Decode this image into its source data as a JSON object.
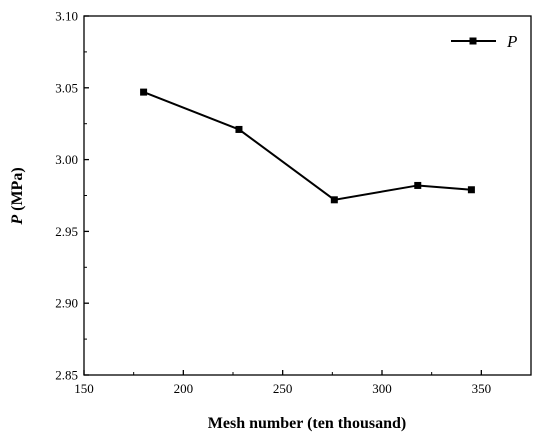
{
  "chart_data": {
    "type": "line",
    "xlabel": "Mesh number (ten thousand)",
    "ylabel_symbol": "P",
    "ylabel_unit": " (MPa)",
    "xlim": [
      150,
      375
    ],
    "ylim": [
      2.85,
      3.1
    ],
    "xticks": [
      150,
      200,
      250,
      300,
      350
    ],
    "yticks": [
      2.85,
      2.9,
      2.95,
      3.0,
      3.05,
      3.1
    ],
    "legend_position": "top-right",
    "series": [
      {
        "name": "P",
        "color": "#000000",
        "marker": "square",
        "x": [
          180,
          228,
          276,
          318,
          345
        ],
        "y": [
          3.047,
          3.021,
          2.972,
          2.982,
          2.979
        ]
      }
    ]
  }
}
